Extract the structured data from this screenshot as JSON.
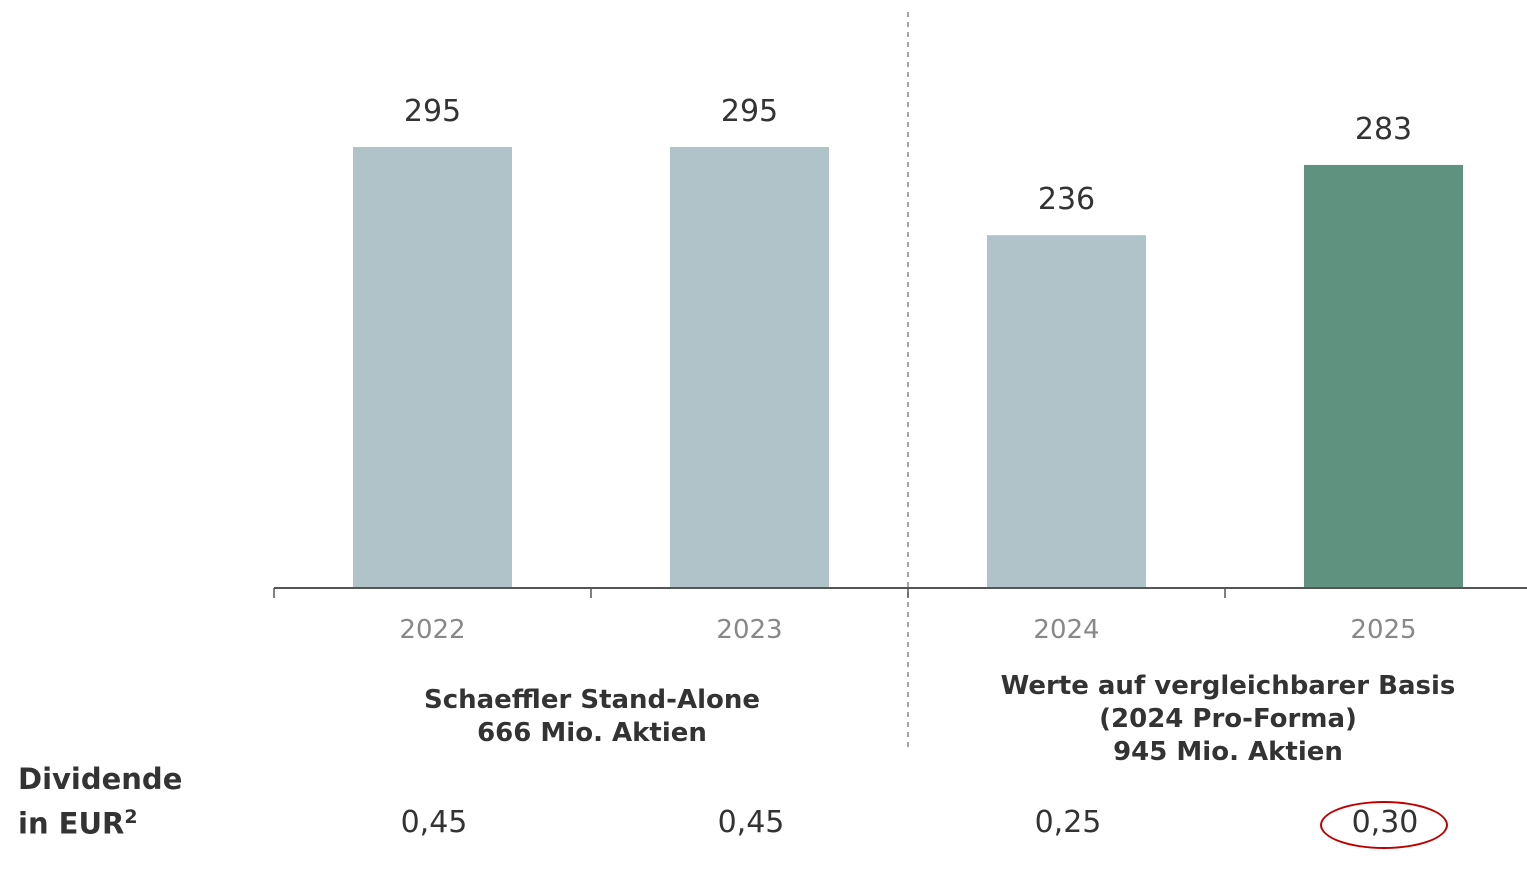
{
  "chart_data": {
    "type": "bar",
    "categories": [
      "2022",
      "2023",
      "2024",
      "2025"
    ],
    "values": [
      295,
      295,
      236,
      283
    ],
    "value_labels": [
      "295",
      "295",
      "236",
      "283"
    ],
    "ylim": [
      0,
      295
    ],
    "bar_colors": [
      "#b0c3c9",
      "#b0c3c9",
      "#b0c3c9",
      "#5f9380"
    ],
    "axis_color": "#555555",
    "tick_label_color": "#888888",
    "divider": "dashed vertical line between 2023 and 2024",
    "groups": [
      {
        "lines": [
          "Schaeffler Stand-Alone",
          "666 Mio. Aktien"
        ]
      },
      {
        "lines": [
          "Werte auf vergleichbarer Basis",
          "(2024 Pro-Forma)",
          "945 Mio. Aktien"
        ]
      }
    ]
  },
  "dividend": {
    "label_line1": "Dividende",
    "label_line2": "in EUR",
    "label_sup": "2",
    "values": [
      "0,45",
      "0,45",
      "0,25",
      "0,30"
    ],
    "highlight_color": "#c00000"
  }
}
